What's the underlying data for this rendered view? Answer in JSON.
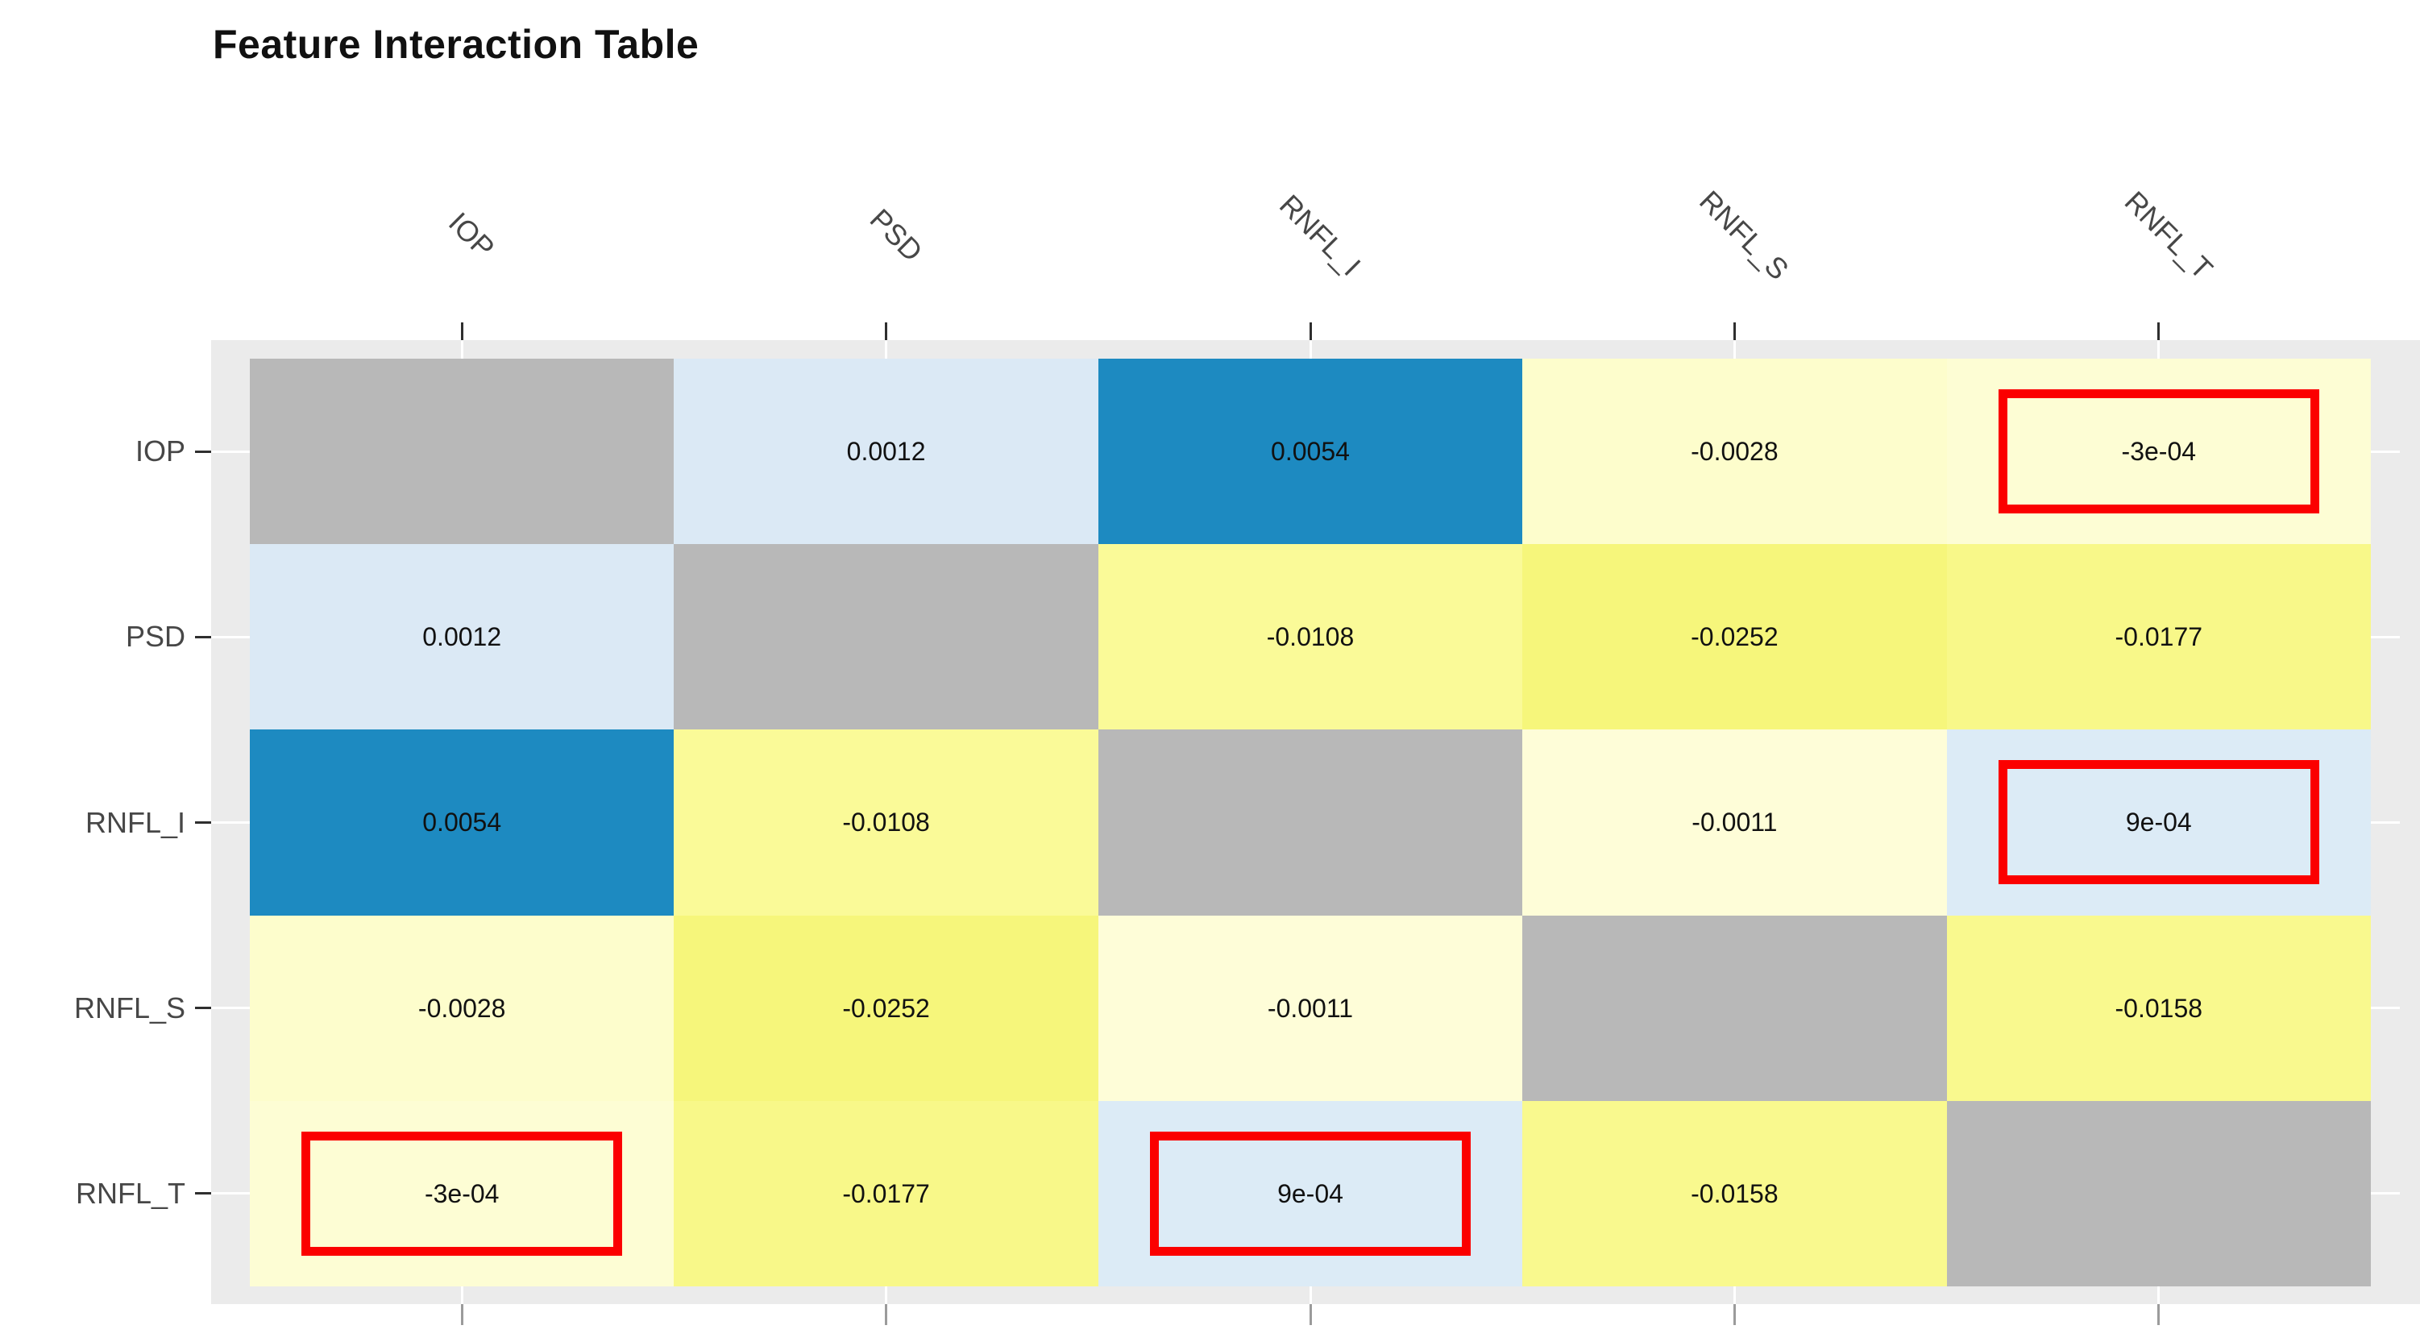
{
  "title": "Feature Interaction Table",
  "colors": {
    "background": "#ffffff",
    "panel_background": "#ebebeb",
    "diagonal_cell": "#b8b8b8",
    "gridline": "#ffffff",
    "tick_dark": "#2f2f2f",
    "tick_bottom": "#9b9b9b",
    "axis_label_text": "#474747",
    "value_text": "#111111",
    "title_text": "#111111",
    "highlight_border": "#fb0000",
    "cell_blue_light": "#dbe9f5",
    "cell_blue_dark": "#1d8ac1",
    "cell_yellow_pale": "#fdfdd0",
    "cell_yellow_bright": "#f8f889"
  },
  "chart_data": {
    "type": "heatmap",
    "title": "Feature Interaction Table",
    "categories": [
      "IOP",
      "PSD",
      "RNFL_I",
      "RNFL_S",
      "RNFL_T"
    ],
    "rows": [
      "IOP",
      "PSD",
      "RNFL_I",
      "RNFL_S",
      "RNFL_T"
    ],
    "matrix": [
      [
        null,
        0.0012,
        0.0054,
        -0.0028,
        -0.0003
      ],
      [
        0.0012,
        null,
        -0.0108,
        -0.0252,
        -0.0177
      ],
      [
        0.0054,
        -0.0108,
        null,
        -0.0011,
        0.0009
      ],
      [
        -0.0028,
        -0.0252,
        -0.0011,
        null,
        -0.0158
      ],
      [
        -0.0003,
        -0.0177,
        0.0009,
        -0.0158,
        null
      ]
    ],
    "labels": [
      [
        "",
        "0.0012",
        "0.0054",
        "-0.0028",
        "-3e-04"
      ],
      [
        "0.0012",
        "",
        "-0.0108",
        "-0.0252",
        "-0.0177"
      ],
      [
        "0.0054",
        "-0.0108",
        "",
        "-0.0011",
        "9e-04"
      ],
      [
        "-0.0028",
        "-0.0252",
        "-0.0011",
        "",
        "-0.0158"
      ],
      [
        "-3e-04",
        "-0.0177",
        "9e-04",
        "-0.0158",
        ""
      ]
    ],
    "cell_colors": [
      [
        "#b8b8b8",
        "#dbe9f5",
        "#1d8ac1",
        "#fdfdcc",
        "#fdfdd4"
      ],
      [
        "#dbe9f5",
        "#b8b8b8",
        "#fafa98",
        "#f6f67b",
        "#f8f889"
      ],
      [
        "#1d8ac1",
        "#fafa98",
        "#b8b8b8",
        "#fefdd8",
        "#dcebf6"
      ],
      [
        "#fdfdcc",
        "#f6f67b",
        "#fefdd8",
        "#b8b8b8",
        "#f9f98e"
      ],
      [
        "#fdfdd4",
        "#f8f889",
        "#dcebf6",
        "#f9f98e",
        "#b8b8b8"
      ]
    ],
    "diagonal_cells": "no value (gray)",
    "highlighted_cells": [
      {
        "row": "IOP",
        "col": "RNFL_T",
        "value": "-3e-04"
      },
      {
        "row": "RNFL_I",
        "col": "RNFL_T",
        "value": "9e-04"
      },
      {
        "row": "RNFL_T",
        "col": "IOP",
        "value": "-3e-04"
      },
      {
        "row": "RNFL_T",
        "col": "RNFL_I",
        "value": "9e-04"
      }
    ],
    "legend": "none",
    "grid": "white stubs at row/column centers in panel margins"
  }
}
